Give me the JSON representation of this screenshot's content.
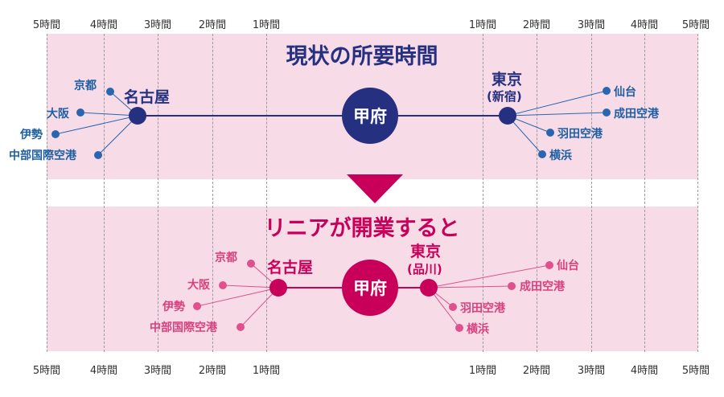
{
  "colors": {
    "band": "#f7dce8",
    "navy": "#263081",
    "blue_text": "#1e5fa3",
    "blue_dot": "#2a66b0",
    "magenta": "#c8005a",
    "magenta_light": "#e0508c",
    "pink_text": "#d9407e"
  },
  "axis": {
    "left_labels": [
      "5時間",
      "4時間",
      "3時間",
      "2時間",
      "1時間"
    ],
    "right_labels": [
      "1時間",
      "2時間",
      "3時間",
      "4時間",
      "5時間"
    ]
  },
  "current": {
    "title": "現状の所要時間",
    "hub": "甲府",
    "west_city": "名古屋",
    "east_city": "東京",
    "east_sub": "(新宿)",
    "west_dests": [
      "京都",
      "大阪",
      "伊勢",
      "中部国際空港"
    ],
    "east_dests": [
      "仙台",
      "成田空港",
      "羽田空港",
      "横浜"
    ]
  },
  "linear": {
    "title": "リニアが開業すると",
    "hub": "甲府",
    "west_city": "名古屋",
    "east_city": "東京",
    "east_sub": "(品川)",
    "west_dests": [
      "京都",
      "大阪",
      "伊勢",
      "中部国際空港"
    ],
    "east_dests": [
      "仙台",
      "成田空港",
      "羽田空港",
      "横浜"
    ]
  }
}
